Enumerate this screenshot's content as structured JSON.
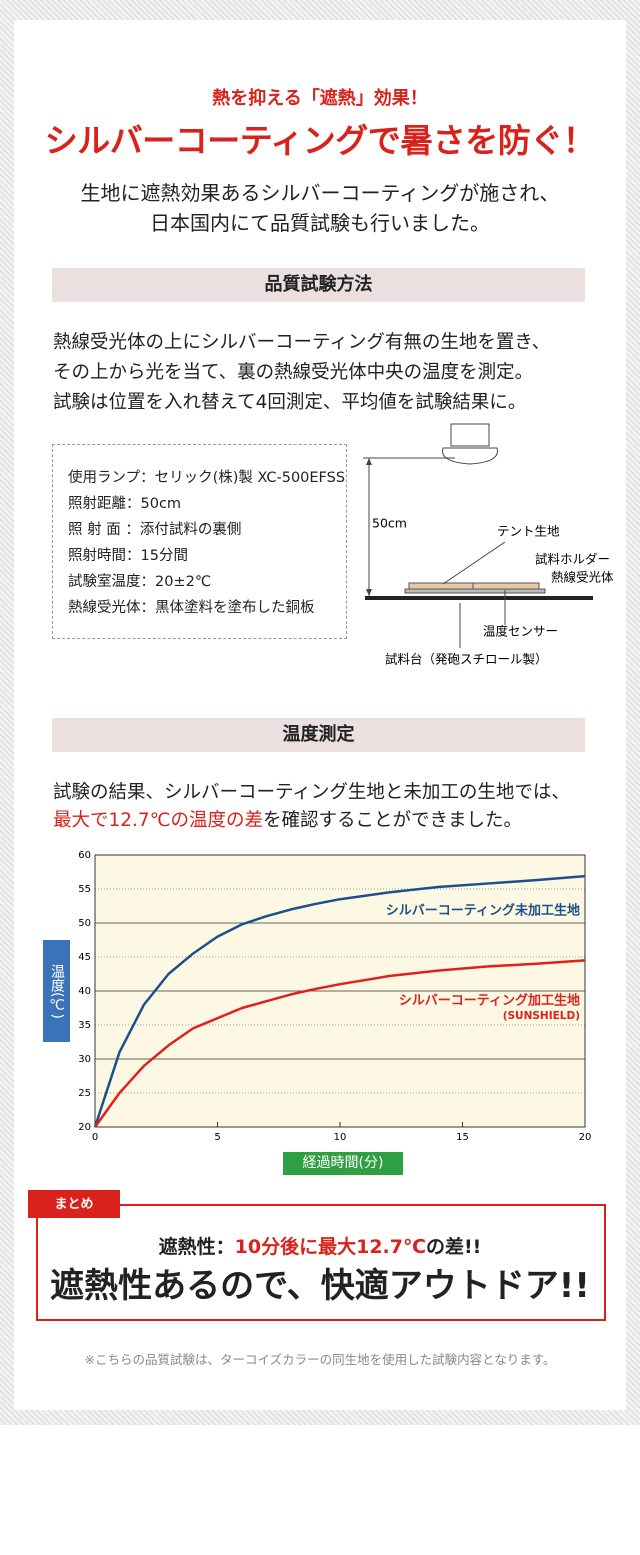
{
  "header": {
    "kicker": "熱を抑える「遮熱」効果！",
    "title": "シルバーコーティングで暑さを防ぐ！",
    "lead": [
      "生地に遮熱効果あるシルバーコーティングが施され、",
      "日本国内にて品質試験も行いました。"
    ]
  },
  "method": {
    "heading": "品質試験方法",
    "text": [
      "熱線受光体の上にシルバーコーティング有無の生地を置き、",
      "その上から光を当て、裏の熱線受光体中央の温度を測定。",
      "試験は位置を入れ替えて4回測定、平均値を試験結果に。"
    ],
    "conditions": [
      "使用ランプ：セリック(株)製 XC-500EFSS",
      "照射距離：50cm",
      "照 射 面 ：添付試料の裏側",
      "照射時間：15分間",
      "試験室温度：20±2℃",
      "熱線受光体：黒体塗料を塗布した銅板"
    ],
    "diagram": {
      "distance": "50cm",
      "labels": [
        "テント生地",
        "試料ホルダー",
        "熱線受光体",
        "温度センサー",
        "試料台（発砲スチロール製）"
      ]
    }
  },
  "measurement": {
    "heading": "温度測定",
    "text": "試験の結果、シルバーコーティング生地と未加工の生地では、",
    "text_2": [
      "最大で12.7℃の温度の差",
      "を確認することができました。"
    ]
  },
  "chart_data": {
    "type": "line",
    "x_label": "経過時間(分)",
    "y_label": "温度(℃)",
    "x": [
      0,
      1,
      2,
      3,
      4,
      5,
      6,
      7,
      8,
      9,
      10,
      12,
      14,
      16,
      18,
      20
    ],
    "series": [
      {
        "name": "シルバーコーティング未加工生地",
        "color": "#1d4f8c",
        "values": [
          20,
          31,
          38,
          42.5,
          45.5,
          48,
          49.8,
          51,
          52,
          52.8,
          53.5,
          54.5,
          55.3,
          55.8,
          56.3,
          56.9
        ]
      },
      {
        "name": "シルバーコーティング加工生地",
        "color": "#e0201b",
        "values": [
          20,
          25,
          29,
          32,
          34.5,
          36,
          37.5,
          38.5,
          39.5,
          40.3,
          41,
          42.2,
          43,
          43.6,
          44,
          44.5
        ]
      }
    ],
    "annotations": [
      "(SUNSHIELD)"
    ],
    "xlim": [
      0,
      20
    ],
    "xticks": [
      0,
      5,
      10,
      15,
      20
    ],
    "ylim": [
      20,
      60
    ],
    "yticks": [
      20,
      25,
      30,
      35,
      40,
      45,
      50,
      55,
      60
    ],
    "grid": true
  },
  "summary": {
    "tag": "まとめ",
    "line": [
      "遮熱性：",
      "10分後に最大12.7℃",
      "の差!!"
    ],
    "headline": "遮熱性あるので、快適アウトドア!!"
  },
  "footnote": "※こちらの品質試験は、ターコイズカラーの同生地を使用した試験内容となります。"
}
